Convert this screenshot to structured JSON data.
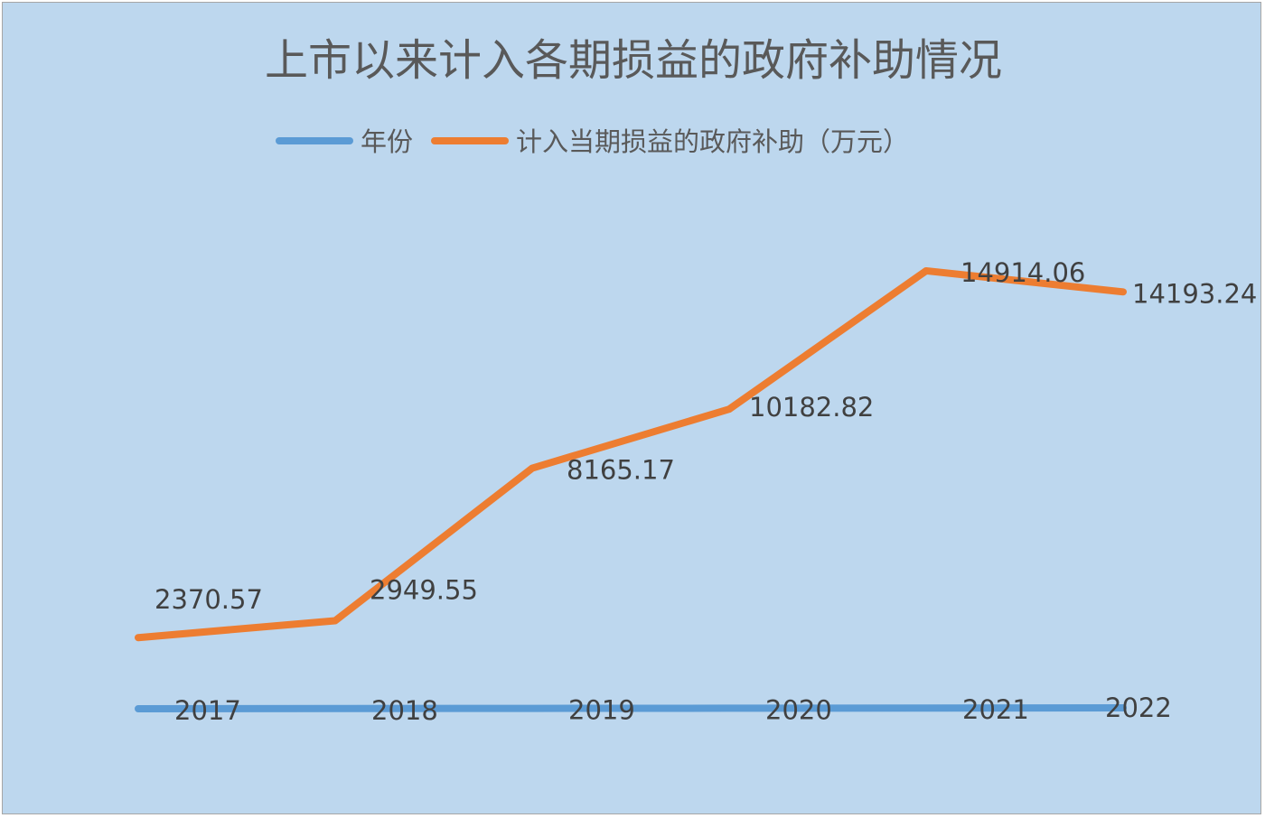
{
  "chart_data": {
    "type": "line",
    "title": "上市以来计入各期损益的政府补助情况",
    "legend_position": "top",
    "grid": false,
    "categories": [
      "2017",
      "2018",
      "2019",
      "2020",
      "2021",
      "2022"
    ],
    "series": [
      {
        "name": "年份",
        "color": "#5b9bd5",
        "values": [
          2017,
          2018,
          2019,
          2020,
          2021,
          2022
        ],
        "labels": [
          "2017",
          "2018",
          "2019",
          "2020",
          "2021",
          "2022"
        ]
      },
      {
        "name": "计入当期损益的政府补助（万元）",
        "color": "#ed7d31",
        "values": [
          2370.57,
          2949.55,
          8165.17,
          10182.82,
          14914.06,
          14193.24
        ],
        "labels": [
          "2370.57",
          "2949.55",
          "8165.17",
          "10182.82",
          "14914.06",
          "14193.24"
        ]
      }
    ],
    "ylim": [
      0,
      18000
    ]
  }
}
